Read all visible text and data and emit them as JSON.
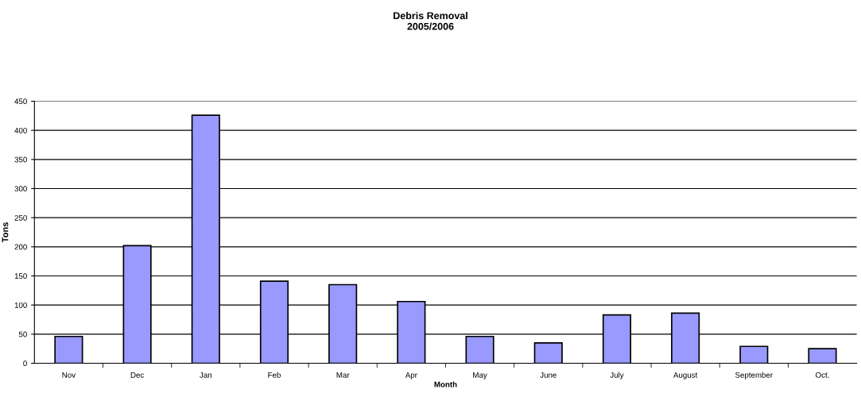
{
  "chart_data": {
    "type": "bar",
    "title": "Debris Removal\n2005/2006",
    "xlabel": "Month",
    "ylabel": "Tons",
    "categories": [
      "Nov",
      "Dec",
      "Jan",
      "Feb",
      "Mar",
      "Apr",
      "May",
      "June",
      "July",
      "August",
      "September",
      "Oct."
    ],
    "values": [
      46,
      202,
      426,
      141,
      135,
      106,
      46,
      35,
      83,
      86,
      29,
      25
    ],
    "color": "#9999ff",
    "ylim": [
      0,
      450
    ],
    "yticks": [
      0,
      50,
      100,
      150,
      200,
      250,
      300,
      350,
      400,
      450
    ],
    "grid": "y"
  }
}
